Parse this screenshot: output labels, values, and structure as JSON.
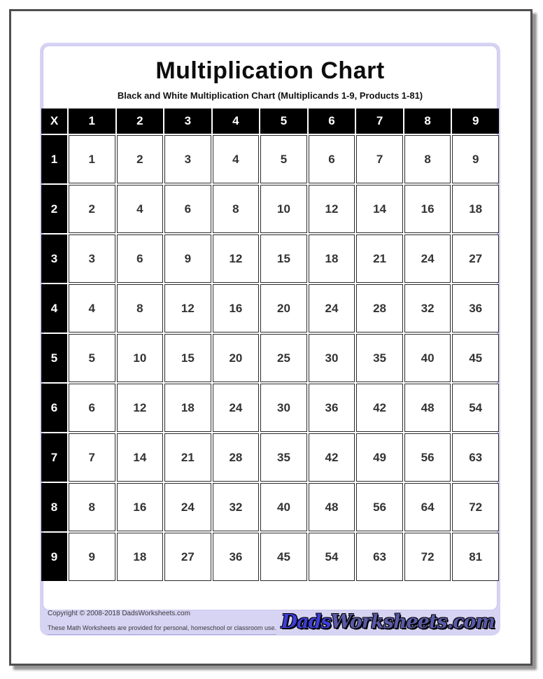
{
  "header": {
    "title": "Multiplication Chart",
    "subtitle": "Black and White Multiplication Chart (Multiplicands 1-9, Products 1-81)"
  },
  "table": {
    "corner_label": "X",
    "column_headers": [
      "1",
      "2",
      "3",
      "4",
      "5",
      "6",
      "7",
      "8",
      "9"
    ],
    "rows": [
      {
        "header": "1",
        "cells": [
          "1",
          "2",
          "3",
          "4",
          "5",
          "6",
          "7",
          "8",
          "9"
        ]
      },
      {
        "header": "2",
        "cells": [
          "2",
          "4",
          "6",
          "8",
          "10",
          "12",
          "14",
          "16",
          "18"
        ]
      },
      {
        "header": "3",
        "cells": [
          "3",
          "6",
          "9",
          "12",
          "15",
          "18",
          "21",
          "24",
          "27"
        ]
      },
      {
        "header": "4",
        "cells": [
          "4",
          "8",
          "12",
          "16",
          "20",
          "24",
          "28",
          "32",
          "36"
        ]
      },
      {
        "header": "5",
        "cells": [
          "5",
          "10",
          "15",
          "20",
          "25",
          "30",
          "35",
          "40",
          "45"
        ]
      },
      {
        "header": "6",
        "cells": [
          "6",
          "12",
          "18",
          "24",
          "30",
          "36",
          "42",
          "48",
          "54"
        ]
      },
      {
        "header": "7",
        "cells": [
          "7",
          "14",
          "21",
          "28",
          "35",
          "42",
          "49",
          "56",
          "63"
        ]
      },
      {
        "header": "8",
        "cells": [
          "8",
          "16",
          "24",
          "32",
          "40",
          "48",
          "56",
          "64",
          "72"
        ]
      },
      {
        "header": "9",
        "cells": [
          "9",
          "18",
          "27",
          "36",
          "45",
          "54",
          "63",
          "72",
          "81"
        ]
      }
    ]
  },
  "footer": {
    "copyright_line": "Copyright © 2008-2018 DadsWorksheets.com",
    "usage_line": "These Math Worksheets are provided for personal, homeschool or classroom use.",
    "logo": {
      "dads": "Dads",
      "worksheets": "Worksheets",
      "com": ".com"
    }
  },
  "colors": {
    "accent_lavender": "#d7d3f3",
    "table_header_black": "#000000",
    "logo_blue": "#3e3ed8",
    "page_border_gray": "#4f4f4f"
  }
}
